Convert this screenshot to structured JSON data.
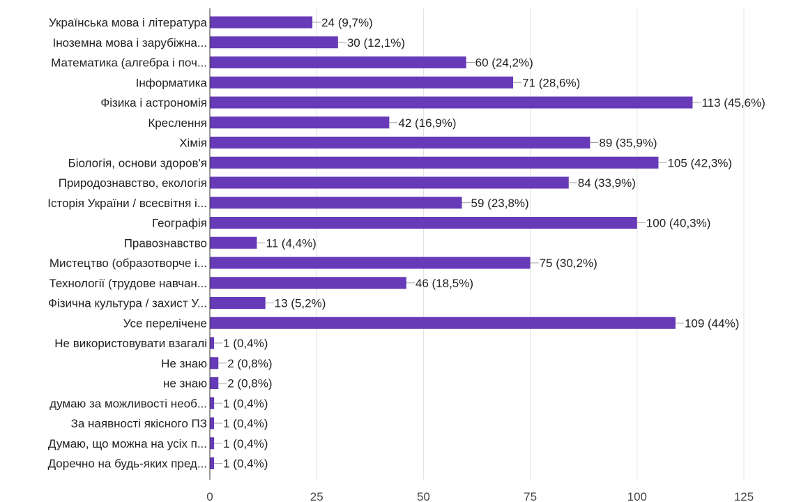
{
  "chart_data": {
    "type": "bar",
    "orientation": "horizontal",
    "title": "",
    "xlabel": "",
    "ylabel": "",
    "xlim": [
      0,
      125
    ],
    "x_ticks": [
      0,
      25,
      50,
      75,
      100,
      125
    ],
    "x_tick_labels": [
      "0",
      "25",
      "50",
      "75",
      "100",
      "125"
    ],
    "grid": true,
    "legend": "none",
    "bar_color": "#673ab7",
    "categories": [
      "Українська мова і література",
      "Іноземна мова і зарубіжна...",
      "Математика (алгебра і поч...",
      "Інформатика",
      "Фізика і астрономія",
      "Креслення",
      "Хімія",
      "Біологія, основи здоров'я",
      "Природознавство, екологія",
      "Історія України / всесвітня і...",
      "Географія",
      "Правознавство",
      "Мистецтво (образотворче і...",
      "Технології (трудове навчан...",
      "Фізична культура / захист У...",
      "Усе перелічене",
      "Не використовувати взагалі",
      "Не знаю",
      "не знаю",
      "думаю за можливості необ...",
      "За наявності якісного ПЗ",
      "Думаю, що можна на усіх п...",
      "Доречно на будь-яких пред..."
    ],
    "values": [
      24,
      30,
      60,
      71,
      113,
      42,
      89,
      105,
      84,
      59,
      100,
      11,
      75,
      46,
      13,
      109,
      1,
      2,
      2,
      1,
      1,
      1,
      1
    ],
    "value_labels": [
      "24 (9,7%)",
      "30 (12,1%)",
      "60 (24,2%)",
      "71 (28,6%)",
      "113 (45,6%)",
      "42 (16,9%)",
      "89 (35,9%)",
      "105 (42,3%)",
      "84 (33,9%)",
      "59 (23,8%)",
      "100 (40,3%)",
      "11 (4,4%)",
      "75 (30,2%)",
      "46 (18,5%)",
      "13 (5,2%)",
      "109 (44%)",
      "1 (0,4%)",
      "2 (0,8%)",
      "2 (0,8%)",
      "1 (0,4%)",
      "1 (0,4%)",
      "1 (0,4%)",
      "1 (0,4%)"
    ]
  }
}
